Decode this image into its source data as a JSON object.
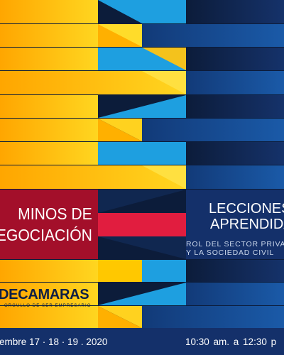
{
  "colors": {
    "yellow": "#ffd21f",
    "orange": "#ffae00",
    "sky_blue": "#1e9fe0",
    "mid_blue": "#1357a8",
    "deep_blue": "#163d7a",
    "navy": "#0c1c3a",
    "crimson": "#a30f2a",
    "bright_red": "#e11d3f",
    "footer_blue": "#14306a"
  },
  "title": {
    "line1": "MINOS DE",
    "line2": "EGOCIACIÓN"
  },
  "lessons": {
    "line1": "LECCIONES",
    "line2": "APRENDIDA",
    "subtitle_line1": "ROL DEL SECTOR PRIVA",
    "subtitle_line2": "Y LA SOCIEDAD CIVIL"
  },
  "brand": {
    "name": "DECAMARAS",
    "tagline": "ORGULLO DE SER EMPRESARIO"
  },
  "footer": {
    "dates": "iembre 17 · 18 · 19 . 2020",
    "time": "10:30 am.  a  12:30 p"
  }
}
